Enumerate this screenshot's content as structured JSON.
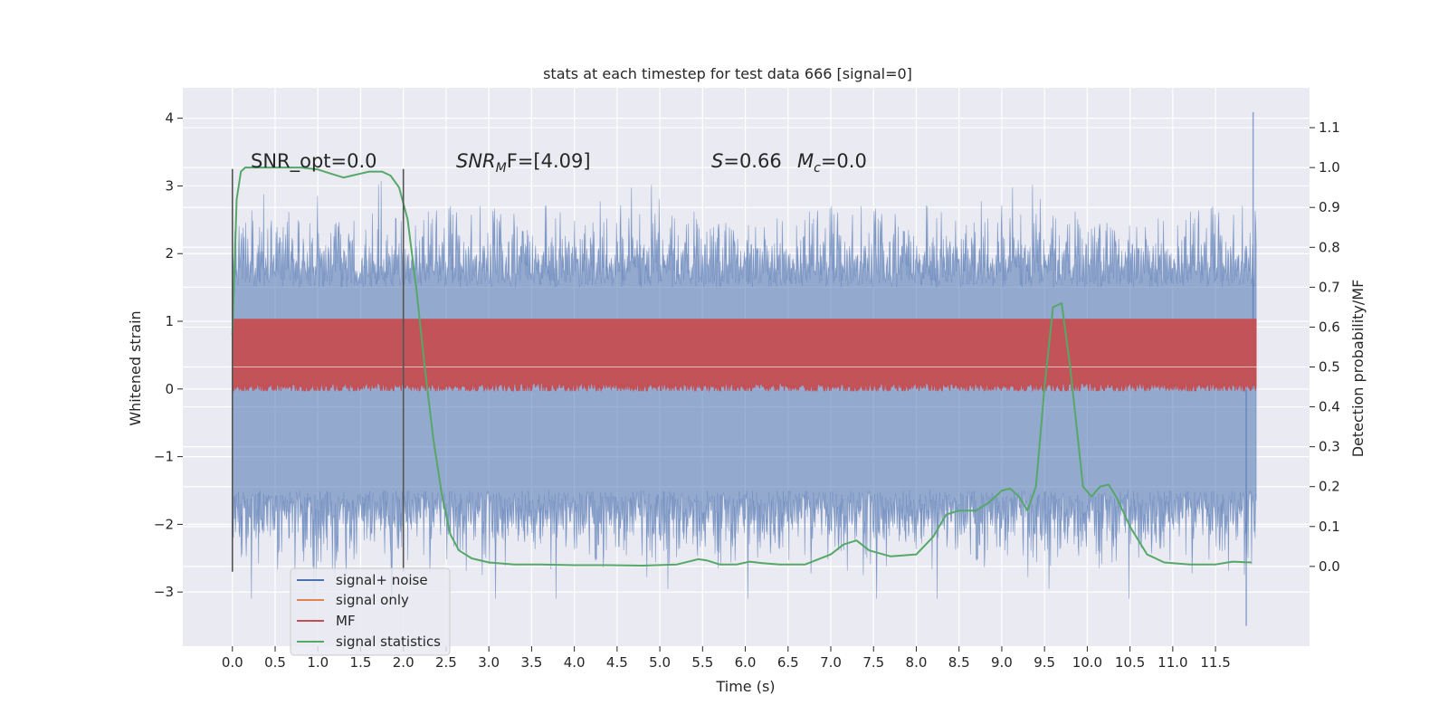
{
  "chart_data": {
    "type": "line",
    "title": "stats at each timestep for test data 666 [signal=0]",
    "xlabel": "Time (s)",
    "ylabel_left": "Whitened strain",
    "ylabel_right": "Detection probability/MF",
    "xlim": [
      -0.58,
      12.6
    ],
    "ylim_left": [
      -3.8,
      4.45
    ],
    "ylim_right": [
      -0.2,
      1.2
    ],
    "x_ticks": [
      "0.0",
      "0.5",
      "1.0",
      "1.5",
      "2.0",
      "2.5",
      "3.0",
      "3.5",
      "4.0",
      "4.5",
      "5.0",
      "5.5",
      "6.0",
      "6.5",
      "7.0",
      "7.5",
      "8.0",
      "8.5",
      "9.0",
      "9.5",
      "10.0",
      "10.5",
      "11.0",
      "11.5"
    ],
    "y_left_ticks": [
      "4",
      "3",
      "2",
      "1",
      "0",
      "−1",
      "−2",
      "−3"
    ],
    "y_right_ticks": [
      "1.1",
      "1.0",
      "0.9",
      "0.8",
      "0.7",
      "0.6",
      "0.5",
      "0.4",
      "0.3",
      "0.2",
      "0.1",
      "0.0"
    ],
    "grid": true,
    "legend_position": "lower-left",
    "window_markers": [
      0.0,
      2.0
    ],
    "window_marker_range": [
      -2.7,
      3.25
    ],
    "annotations": {
      "snr_opt": "SNR_opt=0.0",
      "snr_mf_main": "SNR",
      "snr_mf_sub": "M",
      "snr_mf_tail": "F=[4.09]",
      "stat_s_main": "S",
      "stat_s_tail": "=0.66",
      "stat_mc_main": "M",
      "stat_mc_sub": "c",
      "stat_mc_tail": "=0.0"
    },
    "series": [
      {
        "name": "signal+ noise",
        "color": "#4c72b0",
        "axis": "left",
        "x_range": [
          0.0,
          11.98
        ],
        "envelope_upper": 1.5,
        "envelope_lower": -1.5,
        "peak_max": 4.09,
        "peak_min": -3.5,
        "noise_scale": 1.0
      },
      {
        "name": "signal only",
        "color": "#dd8452",
        "axis": "left",
        "values": []
      },
      {
        "name": "MF",
        "color": "#c44e52",
        "axis": "right",
        "x_range": [
          0.0,
          11.98
        ],
        "baseline": 0.5,
        "band_upper": 0.62,
        "band_lower": 0.46
      },
      {
        "name": "signal statistics",
        "color": "#55a868",
        "axis": "right",
        "x": [
          0.0,
          0.05,
          0.1,
          0.15,
          0.25,
          0.5,
          0.8,
          1.0,
          1.15,
          1.3,
          1.4,
          1.5,
          1.6,
          1.75,
          1.85,
          1.95,
          2.05,
          2.15,
          2.25,
          2.35,
          2.45,
          2.55,
          2.65,
          2.8,
          3.0,
          3.3,
          3.6,
          4.0,
          4.4,
          4.8,
          5.2,
          5.45,
          5.55,
          5.7,
          5.9,
          6.05,
          6.2,
          6.4,
          6.7,
          7.0,
          7.15,
          7.3,
          7.45,
          7.7,
          8.0,
          8.2,
          8.35,
          8.5,
          8.7,
          8.85,
          9.0,
          9.1,
          9.2,
          9.3,
          9.4,
          9.5,
          9.6,
          9.7,
          9.8,
          9.9,
          9.95,
          10.05,
          10.15,
          10.25,
          10.35,
          10.5,
          10.7,
          10.9,
          11.2,
          11.5,
          11.7,
          11.92
        ],
        "y": [
          0.58,
          0.92,
          0.99,
          1.0,
          1.0,
          1.0,
          1.0,
          0.995,
          0.985,
          0.975,
          0.98,
          0.985,
          0.99,
          0.99,
          0.98,
          0.95,
          0.87,
          0.7,
          0.5,
          0.32,
          0.18,
          0.08,
          0.04,
          0.02,
          0.01,
          0.005,
          0.005,
          0.003,
          0.003,
          0.002,
          0.005,
          0.018,
          0.015,
          0.005,
          0.005,
          0.012,
          0.008,
          0.005,
          0.005,
          0.03,
          0.055,
          0.065,
          0.04,
          0.025,
          0.03,
          0.075,
          0.13,
          0.14,
          0.14,
          0.16,
          0.19,
          0.195,
          0.175,
          0.14,
          0.2,
          0.45,
          0.65,
          0.66,
          0.5,
          0.3,
          0.2,
          0.175,
          0.2,
          0.205,
          0.17,
          0.1,
          0.03,
          0.01,
          0.005,
          0.005,
          0.012,
          0.01
        ]
      }
    ]
  }
}
